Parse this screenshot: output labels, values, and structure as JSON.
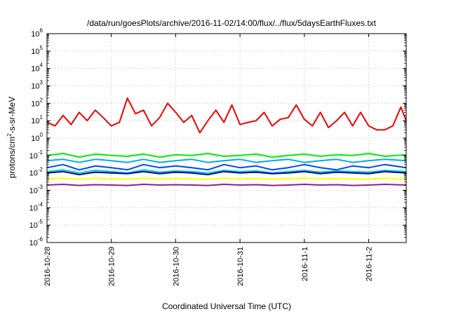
{
  "chart_data": {
    "type": "line",
    "title": "/data/run/goesPlots/archive/2016-11-02/14:00/flux/../flux/5daysEarthFluxes.txt",
    "xlabel": "Coordinated Universal Time (UTC)",
    "ylabel": {
      "parts": [
        "protons/cm",
        "2",
        "-s-sr-MeV"
      ]
    },
    "yscale": "log",
    "ylim": [
      1e-06,
      1000000.0
    ],
    "y_ticks": [
      {
        "base": "10",
        "exp": "-6",
        "value": 1e-06
      },
      {
        "base": "10",
        "exp": "-5",
        "value": 1e-05
      },
      {
        "base": "10",
        "exp": "-4",
        "value": 0.0001
      },
      {
        "base": "10",
        "exp": "-3",
        "value": 0.001
      },
      {
        "base": "10",
        "exp": "-2",
        "value": 0.01
      },
      {
        "base": "10",
        "exp": "-1",
        "value": 0.1
      },
      {
        "base": "10",
        "exp": "0",
        "value": 1
      },
      {
        "base": "10",
        "exp": "1",
        "value": 10
      },
      {
        "base": "10",
        "exp": "2",
        "value": 100
      },
      {
        "base": "10",
        "exp": "3",
        "value": 1000
      },
      {
        "base": "10",
        "exp": "4",
        "value": 10000
      },
      {
        "base": "10",
        "exp": "5",
        "value": 100000
      },
      {
        "base": "10",
        "exp": "6",
        "value": 1000000
      }
    ],
    "xlim": [
      "2016-10-28",
      "2016-11-02 14:00"
    ],
    "x_ticks": [
      "2016-10-28",
      "2016-10-29",
      "2016-10-30",
      "2016-10-31",
      "2016-11-1",
      "2016-11-2"
    ],
    "grid": true,
    "series": [
      {
        "color": "#ee0000",
        "values": [
          [
            "2016-10-28 00:00",
            8
          ],
          [
            "2016-10-28 03:00",
            5
          ],
          [
            "2016-10-28 06:00",
            20
          ],
          [
            "2016-10-28 09:00",
            6
          ],
          [
            "2016-10-28 12:00",
            30
          ],
          [
            "2016-10-28 15:00",
            10
          ],
          [
            "2016-10-28 18:00",
            40
          ],
          [
            "2016-10-28 21:00",
            15
          ],
          [
            "2016-10-29 00:00",
            5
          ],
          [
            "2016-10-29 03:00",
            8
          ],
          [
            "2016-10-29 06:00",
            200
          ],
          [
            "2016-10-29 09:00",
            25
          ],
          [
            "2016-10-29 12:00",
            40
          ],
          [
            "2016-10-29 15:00",
            5
          ],
          [
            "2016-10-29 18:00",
            15
          ],
          [
            "2016-10-29 21:00",
            100
          ],
          [
            "2016-10-30 00:00",
            30
          ],
          [
            "2016-10-30 03:00",
            8
          ],
          [
            "2016-10-30 06:00",
            20
          ],
          [
            "2016-10-30 09:00",
            2
          ],
          [
            "2016-10-30 12:00",
            10
          ],
          [
            "2016-10-30 15:00",
            40
          ],
          [
            "2016-10-30 18:00",
            8
          ],
          [
            "2016-10-30 21:00",
            80
          ],
          [
            "2016-10-31 00:00",
            6
          ],
          [
            "2016-10-31 03:00",
            8
          ],
          [
            "2016-10-31 06:00",
            10
          ],
          [
            "2016-10-31 09:00",
            30
          ],
          [
            "2016-10-31 12:00",
            5
          ],
          [
            "2016-10-31 15:00",
            12
          ],
          [
            "2016-10-31 18:00",
            15
          ],
          [
            "2016-10-31 21:00",
            80
          ],
          [
            "2016-11-01 00:00",
            12
          ],
          [
            "2016-11-01 03:00",
            5
          ],
          [
            "2016-11-01 06:00",
            30
          ],
          [
            "2016-11-01 09:00",
            4
          ],
          [
            "2016-11-01 12:00",
            10
          ],
          [
            "2016-11-01 15:00",
            30
          ],
          [
            "2016-11-01 18:00",
            5
          ],
          [
            "2016-11-01 21:00",
            30
          ],
          [
            "2016-11-02 00:00",
            5
          ],
          [
            "2016-11-02 03:00",
            3
          ],
          [
            "2016-11-02 06:00",
            3
          ],
          [
            "2016-11-02 09:00",
            5
          ],
          [
            "2016-11-02 12:00",
            60
          ],
          [
            "2016-11-02 14:00",
            10
          ]
        ]
      },
      {
        "color": "#00ee00",
        "values": [
          [
            "2016-10-28 00:00",
            0.1
          ],
          [
            "2016-10-28 06:00",
            0.13
          ],
          [
            "2016-10-28 12:00",
            0.08
          ],
          [
            "2016-10-28 18:00",
            0.12
          ],
          [
            "2016-10-29 00:00",
            0.1
          ],
          [
            "2016-10-29 06:00",
            0.09
          ],
          [
            "2016-10-29 12:00",
            0.12
          ],
          [
            "2016-10-29 18:00",
            0.08
          ],
          [
            "2016-10-30 00:00",
            0.11
          ],
          [
            "2016-10-30 06:00",
            0.1
          ],
          [
            "2016-10-30 12:00",
            0.13
          ],
          [
            "2016-10-30 18:00",
            0.09
          ],
          [
            "2016-10-31 00:00",
            0.1
          ],
          [
            "2016-10-31 06:00",
            0.12
          ],
          [
            "2016-10-31 12:00",
            0.08
          ],
          [
            "2016-10-31 18:00",
            0.1
          ],
          [
            "2016-11-01 00:00",
            0.12
          ],
          [
            "2016-11-01 06:00",
            0.09
          ],
          [
            "2016-11-01 12:00",
            0.11
          ],
          [
            "2016-11-01 18:00",
            0.1
          ],
          [
            "2016-11-02 00:00",
            0.13
          ],
          [
            "2016-11-02 06:00",
            0.09
          ],
          [
            "2016-11-02 14:00",
            0.11
          ]
        ]
      },
      {
        "color": "#00aaee",
        "values": [
          [
            "2016-10-28 00:00",
            0.05
          ],
          [
            "2016-10-28 06:00",
            0.06
          ],
          [
            "2016-10-28 12:00",
            0.04
          ],
          [
            "2016-10-28 18:00",
            0.06
          ],
          [
            "2016-10-29 00:00",
            0.05
          ],
          [
            "2016-10-29 06:00",
            0.04
          ],
          [
            "2016-10-29 12:00",
            0.06
          ],
          [
            "2016-10-29 18:00",
            0.04
          ],
          [
            "2016-10-30 00:00",
            0.05
          ],
          [
            "2016-10-30 06:00",
            0.06
          ],
          [
            "2016-10-30 12:00",
            0.04
          ],
          [
            "2016-10-30 18:00",
            0.05
          ],
          [
            "2016-10-31 00:00",
            0.06
          ],
          [
            "2016-10-31 06:00",
            0.04
          ],
          [
            "2016-10-31 12:00",
            0.05
          ],
          [
            "2016-10-31 18:00",
            0.06
          ],
          [
            "2016-11-01 00:00",
            0.04
          ],
          [
            "2016-11-01 06:00",
            0.05
          ],
          [
            "2016-11-01 12:00",
            0.06
          ],
          [
            "2016-11-01 18:00",
            0.04
          ],
          [
            "2016-11-02 00:00",
            0.05
          ],
          [
            "2016-11-02 06:00",
            0.06
          ],
          [
            "2016-11-02 14:00",
            0.05
          ]
        ]
      },
      {
        "color": "#0044ff",
        "values": [
          [
            "2016-10-28 00:00",
            0.02
          ],
          [
            "2016-10-28 06:00",
            0.03
          ],
          [
            "2016-10-28 12:00",
            0.015
          ],
          [
            "2016-10-28 18:00",
            0.025
          ],
          [
            "2016-10-29 00:00",
            0.02
          ],
          [
            "2016-10-29 06:00",
            0.015
          ],
          [
            "2016-10-29 12:00",
            0.03
          ],
          [
            "2016-10-29 18:00",
            0.02
          ],
          [
            "2016-10-30 00:00",
            0.025
          ],
          [
            "2016-10-30 06:00",
            0.02
          ],
          [
            "2016-10-30 12:00",
            0.015
          ],
          [
            "2016-10-30 18:00",
            0.03
          ],
          [
            "2016-10-31 00:00",
            0.02
          ],
          [
            "2016-10-31 06:00",
            0.025
          ],
          [
            "2016-10-31 12:00",
            0.015
          ],
          [
            "2016-10-31 18:00",
            0.02
          ],
          [
            "2016-11-01 00:00",
            0.03
          ],
          [
            "2016-11-01 06:00",
            0.02
          ],
          [
            "2016-11-01 12:00",
            0.015
          ],
          [
            "2016-11-01 18:00",
            0.025
          ],
          [
            "2016-11-02 00:00",
            0.02
          ],
          [
            "2016-11-02 06:00",
            0.03
          ],
          [
            "2016-11-02 14:00",
            0.02
          ]
        ]
      },
      {
        "color": "#00cccc",
        "values": [
          [
            "2016-10-28 00:00",
            0.012
          ],
          [
            "2016-10-28 06:00",
            0.015
          ],
          [
            "2016-10-28 12:00",
            0.01
          ],
          [
            "2016-10-28 18:00",
            0.014
          ],
          [
            "2016-10-29 00:00",
            0.012
          ],
          [
            "2016-10-29 06:00",
            0.01
          ],
          [
            "2016-10-29 12:00",
            0.015
          ],
          [
            "2016-10-29 18:00",
            0.011
          ],
          [
            "2016-10-30 00:00",
            0.013
          ],
          [
            "2016-10-30 06:00",
            0.012
          ],
          [
            "2016-10-30 12:00",
            0.01
          ],
          [
            "2016-10-30 18:00",
            0.014
          ],
          [
            "2016-10-31 00:00",
            0.012
          ],
          [
            "2016-10-31 06:00",
            0.013
          ],
          [
            "2016-10-31 12:00",
            0.01
          ],
          [
            "2016-10-31 18:00",
            0.012
          ],
          [
            "2016-11-01 00:00",
            0.014
          ],
          [
            "2016-11-01 06:00",
            0.011
          ],
          [
            "2016-11-01 12:00",
            0.013
          ],
          [
            "2016-11-01 18:00",
            0.012
          ],
          [
            "2016-11-02 00:00",
            0.011
          ],
          [
            "2016-11-02 06:00",
            0.014
          ],
          [
            "2016-11-02 14:00",
            0.012
          ]
        ]
      },
      {
        "color": "#000099",
        "values": [
          [
            "2016-10-28 00:00",
            0.01
          ],
          [
            "2016-10-28 06:00",
            0.012
          ],
          [
            "2016-10-28 12:00",
            0.008
          ],
          [
            "2016-10-28 18:00",
            0.011
          ],
          [
            "2016-10-29 00:00",
            0.01
          ],
          [
            "2016-10-29 06:00",
            0.009
          ],
          [
            "2016-10-29 12:00",
            0.012
          ],
          [
            "2016-10-29 18:00",
            0.009
          ],
          [
            "2016-10-30 00:00",
            0.011
          ],
          [
            "2016-10-30 06:00",
            0.01
          ],
          [
            "2016-10-30 12:00",
            0.008
          ],
          [
            "2016-10-30 18:00",
            0.012
          ],
          [
            "2016-10-31 00:00",
            0.01
          ],
          [
            "2016-10-31 06:00",
            0.011
          ],
          [
            "2016-10-31 12:00",
            0.009
          ],
          [
            "2016-10-31 18:00",
            0.01
          ],
          [
            "2016-11-01 00:00",
            0.012
          ],
          [
            "2016-11-01 06:00",
            0.009
          ],
          [
            "2016-11-01 12:00",
            0.011
          ],
          [
            "2016-11-01 18:00",
            0.01
          ],
          [
            "2016-11-02 00:00",
            0.009
          ],
          [
            "2016-11-02 06:00",
            0.012
          ],
          [
            "2016-11-02 14:00",
            0.01
          ]
        ]
      },
      {
        "color": "#ffff00",
        "values": [
          [
            "2016-10-28 00:00",
            0.0045
          ],
          [
            "2016-10-28 06:00",
            0.005
          ],
          [
            "2016-10-28 12:00",
            0.0042
          ],
          [
            "2016-10-28 18:00",
            0.005
          ],
          [
            "2016-10-29 00:00",
            0.0046
          ],
          [
            "2016-10-29 06:00",
            0.0043
          ],
          [
            "2016-10-29 12:00",
            0.005
          ],
          [
            "2016-10-29 18:00",
            0.0044
          ],
          [
            "2016-10-30 00:00",
            0.0048
          ],
          [
            "2016-10-30 06:00",
            0.0045
          ],
          [
            "2016-10-30 12:00",
            0.0042
          ],
          [
            "2016-10-30 18:00",
            0.005
          ],
          [
            "2016-10-31 00:00",
            0.0045
          ],
          [
            "2016-10-31 06:00",
            0.0048
          ],
          [
            "2016-10-31 12:00",
            0.0043
          ],
          [
            "2016-10-31 18:00",
            0.0046
          ],
          [
            "2016-11-01 00:00",
            0.005
          ],
          [
            "2016-11-01 06:00",
            0.0044
          ],
          [
            "2016-11-01 12:00",
            0.0047
          ],
          [
            "2016-11-01 18:00",
            0.0045
          ],
          [
            "2016-11-02 00:00",
            0.0043
          ],
          [
            "2016-11-02 06:00",
            0.005
          ],
          [
            "2016-11-02 14:00",
            0.0045
          ]
        ]
      },
      {
        "color": "#882288",
        "values": [
          [
            "2016-10-28 00:00",
            0.002
          ],
          [
            "2016-10-28 06:00",
            0.0022
          ],
          [
            "2016-10-28 12:00",
            0.0019
          ],
          [
            "2016-10-28 18:00",
            0.0021
          ],
          [
            "2016-10-29 00:00",
            0.002
          ],
          [
            "2016-10-29 06:00",
            0.0019
          ],
          [
            "2016-10-29 12:00",
            0.0022
          ],
          [
            "2016-10-29 18:00",
            0.002
          ],
          [
            "2016-10-30 00:00",
            0.0021
          ],
          [
            "2016-10-30 06:00",
            0.002
          ],
          [
            "2016-10-30 12:00",
            0.0019
          ],
          [
            "2016-10-30 18:00",
            0.0022
          ],
          [
            "2016-10-31 00:00",
            0.002
          ],
          [
            "2016-10-31 06:00",
            0.0021
          ],
          [
            "2016-10-31 12:00",
            0.0019
          ],
          [
            "2016-10-31 18:00",
            0.002
          ],
          [
            "2016-11-01 00:00",
            0.0022
          ],
          [
            "2016-11-01 06:00",
            0.002
          ],
          [
            "2016-11-01 12:00",
            0.0021
          ],
          [
            "2016-11-01 18:00",
            0.0019
          ],
          [
            "2016-11-02 00:00",
            0.002
          ],
          [
            "2016-11-02 06:00",
            0.0022
          ],
          [
            "2016-11-02 14:00",
            0.002
          ]
        ]
      }
    ]
  }
}
